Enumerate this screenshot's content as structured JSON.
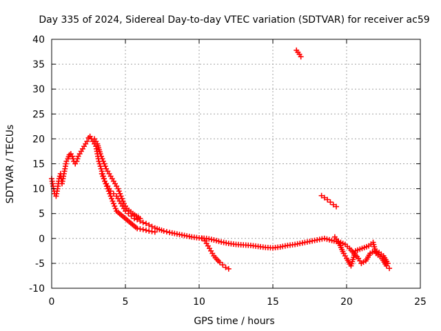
{
  "chart_data": {
    "type": "scatter",
    "title": "Day 335 of 2024, Sidereal Day-to-day VTEC variation (SDTVAR) for receiver ac59",
    "xlabel": "GPS time / hours",
    "ylabel": "SDTVAR / TECUs",
    "xlim": [
      0,
      25
    ],
    "ylim": [
      -10,
      40
    ],
    "xticks": [
      0,
      5,
      10,
      15,
      20,
      25
    ],
    "yticks": [
      -10,
      -5,
      0,
      5,
      10,
      15,
      20,
      25,
      30,
      35,
      40
    ],
    "grid": true,
    "marker": "plus",
    "color": "#ff0000",
    "series": [
      {
        "name": "main-trace",
        "points": [
          [
            0.0,
            12
          ],
          [
            0.1,
            10.5
          ],
          [
            0.2,
            9
          ],
          [
            0.3,
            8.5
          ],
          [
            0.4,
            10
          ],
          [
            0.5,
            12
          ],
          [
            0.6,
            13
          ],
          [
            0.7,
            11
          ],
          [
            0.8,
            12.5
          ],
          [
            0.9,
            14
          ],
          [
            1.0,
            15.5
          ],
          [
            1.1,
            16
          ],
          [
            1.2,
            16.8
          ],
          [
            1.3,
            17
          ],
          [
            1.4,
            16.5
          ],
          [
            1.5,
            15.5
          ],
          [
            1.6,
            15
          ],
          [
            1.7,
            15.5
          ],
          [
            1.8,
            16.5
          ],
          [
            2.0,
            17.5
          ],
          [
            2.2,
            18.5
          ],
          [
            2.4,
            19.5
          ],
          [
            2.5,
            20.2
          ],
          [
            2.6,
            20.5
          ],
          [
            2.7,
            20
          ],
          [
            2.8,
            19.5
          ],
          [
            2.9,
            19
          ],
          [
            3.0,
            18.5
          ],
          [
            3.1,
            17
          ],
          [
            3.2,
            15.5
          ],
          [
            3.3,
            14.5
          ],
          [
            3.4,
            13.5
          ],
          [
            3.5,
            12.5
          ],
          [
            3.6,
            11.5
          ],
          [
            3.7,
            11
          ],
          [
            3.8,
            10.5
          ],
          [
            3.9,
            10
          ],
          [
            4.0,
            9.5
          ],
          [
            4.2,
            9
          ],
          [
            4.4,
            8.5
          ],
          [
            4.6,
            7.5
          ],
          [
            4.8,
            6.5
          ],
          [
            5.0,
            5.5
          ],
          [
            5.2,
            5
          ],
          [
            5.4,
            4.5
          ],
          [
            5.6,
            4
          ],
          [
            5.8,
            3.8
          ],
          [
            6.0,
            3.5
          ],
          [
            6.2,
            3.2
          ],
          [
            6.4,
            3
          ],
          [
            6.6,
            2.7
          ],
          [
            6.8,
            2.4
          ],
          [
            7.0,
            2.1
          ],
          [
            7.3,
            1.8
          ],
          [
            7.6,
            1.5
          ],
          [
            8.0,
            1.2
          ],
          [
            8.5,
            0.9
          ],
          [
            9.0,
            0.6
          ],
          [
            9.5,
            0.3
          ],
          [
            10.0,
            0.1
          ],
          [
            10.5,
            0
          ],
          [
            11.0,
            -0.3
          ],
          [
            11.5,
            -0.7
          ],
          [
            12.0,
            -1
          ],
          [
            12.5,
            -1.2
          ],
          [
            13.0,
            -1.3
          ],
          [
            13.5,
            -1.4
          ],
          [
            14.0,
            -1.6
          ],
          [
            14.5,
            -1.8
          ],
          [
            15.0,
            -1.9
          ],
          [
            15.5,
            -1.7
          ],
          [
            16.0,
            -1.4
          ],
          [
            16.5,
            -1.2
          ],
          [
            17.0,
            -0.9
          ],
          [
            17.5,
            -0.6
          ],
          [
            18.0,
            -0.3
          ],
          [
            18.5,
            0
          ],
          [
            19.0,
            -0.4
          ],
          [
            19.3,
            -0.6
          ],
          [
            19.6,
            -0.8
          ],
          [
            19.9,
            -1.2
          ],
          [
            20.2,
            -2
          ],
          [
            20.5,
            -3
          ],
          [
            20.8,
            -4
          ],
          [
            21.0,
            -5
          ],
          [
            21.3,
            -4.5
          ],
          [
            21.6,
            -3
          ],
          [
            21.9,
            -2.5
          ],
          [
            22.2,
            -2.8
          ],
          [
            22.5,
            -3.5
          ],
          [
            22.8,
            -5
          ]
        ]
      },
      {
        "name": "upper-band",
        "points": [
          [
            2.9,
            20
          ],
          [
            3.1,
            19
          ],
          [
            3.3,
            17
          ],
          [
            3.5,
            15.5
          ],
          [
            3.7,
            14
          ],
          [
            3.9,
            13
          ],
          [
            4.1,
            12
          ],
          [
            4.3,
            11
          ],
          [
            4.5,
            10
          ],
          [
            4.7,
            8.5
          ],
          [
            4.9,
            7
          ],
          [
            5.1,
            6
          ],
          [
            5.5,
            5
          ],
          [
            6.0,
            4
          ]
        ]
      },
      {
        "name": "lower-band",
        "points": [
          [
            3.4,
            13
          ],
          [
            3.6,
            11.5
          ],
          [
            3.8,
            10
          ],
          [
            4.0,
            8.5
          ],
          [
            4.2,
            7
          ],
          [
            4.4,
            5.5
          ],
          [
            5.8,
            2
          ],
          [
            6.2,
            1.8
          ],
          [
            6.6,
            1.5
          ],
          [
            7.0,
            1.3
          ]
        ]
      },
      {
        "name": "drop-branch",
        "points": [
          [
            10.2,
            0
          ],
          [
            10.4,
            -0.5
          ],
          [
            10.6,
            -1.5
          ],
          [
            10.8,
            -2.5
          ],
          [
            11.0,
            -3.5
          ],
          [
            11.2,
            -4.2
          ],
          [
            11.4,
            -4.8
          ],
          [
            11.6,
            -5.3
          ],
          [
            11.8,
            -5.8
          ],
          [
            12.0,
            -6.1
          ]
        ]
      },
      {
        "name": "isolated-upper",
        "points": [
          [
            16.6,
            37.8
          ],
          [
            16.7,
            37.4
          ],
          [
            16.8,
            37
          ],
          [
            16.9,
            36.5
          ]
        ]
      },
      {
        "name": "isolated-middle",
        "points": [
          [
            18.3,
            8.6
          ],
          [
            18.5,
            8.2
          ],
          [
            18.7,
            7.8
          ],
          [
            18.9,
            7.3
          ],
          [
            19.1,
            6.8
          ],
          [
            19.3,
            6.4
          ]
        ]
      },
      {
        "name": "late-tail",
        "points": [
          [
            19.2,
            0.3
          ],
          [
            19.5,
            -1
          ],
          [
            19.8,
            -3
          ],
          [
            20.0,
            -4
          ],
          [
            20.3,
            -5.5
          ],
          [
            20.6,
            -2.5
          ],
          [
            21.5,
            -1.5
          ],
          [
            21.8,
            -0.8
          ],
          [
            22.0,
            -3
          ],
          [
            22.4,
            -4
          ],
          [
            22.7,
            -5.5
          ],
          [
            22.9,
            -6
          ]
        ]
      }
    ]
  }
}
